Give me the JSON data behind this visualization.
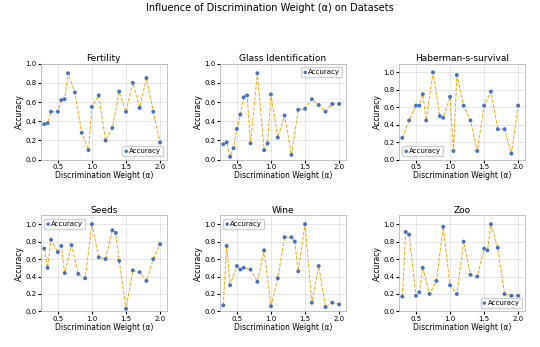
{
  "title": "Influence of Discrimination Weight (α) on Datasets",
  "subplots": [
    {
      "title": "Fertility",
      "x": [
        0.3,
        0.35,
        0.4,
        0.5,
        0.55,
        0.6,
        0.65,
        0.75,
        0.85,
        0.95,
        1.0,
        1.1,
        1.2,
        1.3,
        1.4,
        1.5,
        1.6,
        1.7,
        1.8,
        1.9,
        2.0
      ],
      "y": [
        0.37,
        0.38,
        0.5,
        0.5,
        0.62,
        0.63,
        0.9,
        0.7,
        0.28,
        0.1,
        0.55,
        0.67,
        0.2,
        0.33,
        0.71,
        0.5,
        0.8,
        0.54,
        0.85,
        0.5,
        0.18
      ],
      "ylim": [
        0.0,
        1.0
      ],
      "legend_loc": "lower right"
    },
    {
      "title": "Glass Identification",
      "x": [
        0.3,
        0.35,
        0.4,
        0.45,
        0.5,
        0.55,
        0.6,
        0.65,
        0.7,
        0.8,
        0.9,
        0.95,
        1.0,
        1.1,
        1.2,
        1.3,
        1.4,
        1.5,
        1.6,
        1.7,
        1.8,
        1.9,
        2.0
      ],
      "y": [
        0.16,
        0.18,
        0.03,
        0.12,
        0.32,
        0.47,
        0.65,
        0.67,
        0.17,
        0.9,
        0.1,
        0.17,
        0.68,
        0.23,
        0.46,
        0.05,
        0.52,
        0.53,
        0.63,
        0.57,
        0.5,
        0.58,
        0.58
      ],
      "ylim": [
        0.0,
        1.0
      ],
      "legend_loc": "upper right"
    },
    {
      "title": "Haberman-s-survival",
      "x": [
        0.3,
        0.4,
        0.5,
        0.55,
        0.6,
        0.65,
        0.75,
        0.85,
        0.9,
        1.0,
        1.05,
        1.1,
        1.2,
        1.3,
        1.4,
        1.5,
        1.6,
        1.7,
        1.8,
        1.9,
        2.0
      ],
      "y": [
        0.25,
        0.45,
        0.62,
        0.62,
        0.75,
        0.45,
        1.0,
        0.5,
        0.48,
        0.72,
        0.1,
        0.97,
        0.62,
        0.45,
        0.1,
        0.62,
        0.78,
        0.35,
        0.35,
        0.07,
        0.62
      ],
      "ylim": [
        0.0,
        1.1
      ],
      "legend_loc": "lower left"
    },
    {
      "title": "Seeds",
      "x": [
        0.3,
        0.35,
        0.4,
        0.5,
        0.55,
        0.6,
        0.7,
        0.8,
        0.9,
        1.0,
        1.1,
        1.2,
        1.3,
        1.35,
        1.4,
        1.5,
        1.6,
        1.7,
        1.8,
        1.9,
        2.0
      ],
      "y": [
        0.72,
        0.5,
        0.82,
        0.68,
        0.75,
        0.44,
        0.76,
        0.43,
        0.38,
        1.0,
        0.62,
        0.6,
        0.93,
        0.9,
        0.58,
        0.03,
        0.47,
        0.45,
        0.35,
        0.6,
        0.77
      ],
      "ylim": [
        0.0,
        1.1
      ],
      "legend_loc": "upper left"
    },
    {
      "title": "Wine",
      "x": [
        0.3,
        0.35,
        0.4,
        0.5,
        0.55,
        0.6,
        0.7,
        0.8,
        0.9,
        1.0,
        1.1,
        1.2,
        1.3,
        1.35,
        1.4,
        1.5,
        1.6,
        1.7,
        1.8,
        1.9,
        2.0
      ],
      "y": [
        0.07,
        0.75,
        0.3,
        0.52,
        0.48,
        0.5,
        0.48,
        0.34,
        0.7,
        0.06,
        0.38,
        0.85,
        0.85,
        0.8,
        0.46,
        1.0,
        0.1,
        0.52,
        0.05,
        0.1,
        0.08
      ],
      "ylim": [
        0.0,
        1.1
      ],
      "legend_loc": "upper left"
    },
    {
      "title": "Zoo",
      "x": [
        0.3,
        0.35,
        0.4,
        0.5,
        0.55,
        0.6,
        0.7,
        0.8,
        0.9,
        1.0,
        1.1,
        1.2,
        1.3,
        1.4,
        1.5,
        1.55,
        1.6,
        1.7,
        1.8,
        1.9,
        2.0
      ],
      "y": [
        0.17,
        0.91,
        0.88,
        0.18,
        0.22,
        0.5,
        0.2,
        0.35,
        0.97,
        0.3,
        0.2,
        0.8,
        0.42,
        0.4,
        0.72,
        0.7,
        1.0,
        0.73,
        0.2,
        0.18,
        0.18
      ],
      "ylim": [
        0.0,
        1.1
      ],
      "legend_loc": "lower right"
    }
  ],
  "dot_color": "#4472c4",
  "line_color": "#FFA500",
  "xlabel": "Discrimination Weight (α)",
  "ylabel": "Accuracy",
  "grid_color": "#cccccc",
  "bg_color": "#ffffff",
  "fig_bg": "#ffffff",
  "title_fontsize": 7,
  "subtitle_fontsize": 6.5,
  "tick_fontsize": 5,
  "label_fontsize": 5.5,
  "legend_fontsize": 5,
  "dot_size": 8,
  "line_width": 0.7
}
